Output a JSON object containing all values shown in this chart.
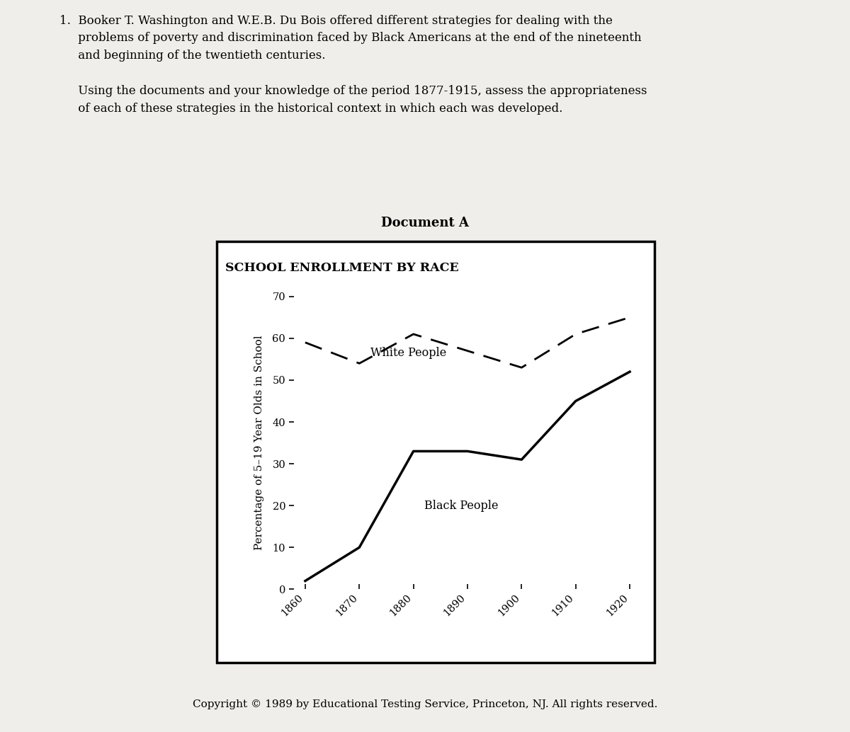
{
  "title_above": "Document A",
  "chart_title": "SCHOOL ENROLLMENT BY RACE",
  "ylabel": "Percentage of 5–19 Year Olds in School",
  "years": [
    1860,
    1870,
    1880,
    1890,
    1900,
    1910,
    1920
  ],
  "white_values": [
    59,
    54,
    61,
    57,
    53,
    61,
    65
  ],
  "black_values": [
    2,
    10,
    33,
    33,
    31,
    45,
    52
  ],
  "ylim": [
    0,
    70
  ],
  "yticks": [
    0,
    10,
    20,
    30,
    40,
    50,
    60,
    70
  ],
  "white_label": "White People",
  "black_label": "Black People",
  "copyright_text": "Copyright © 1989 by Educational Testing Service, Princeton, NJ. All rights reserved.",
  "bg_color": "#f0eeea",
  "chart_bg": "#ffffff",
  "text_color": "#000000",
  "line_color": "#000000",
  "question_text": "1.  Booker T. Washington and W.E.B. Du Bois offered different strategies for dealing with the\n     problems of poverty and discrimination faced by Black Americans at the end of the nineteenth\n     and beginning of the twentieth centuries.\n\n     Using the documents and your knowledge of the period 1877-1915, assess the appropriateness\n     of each of these strategies in the historical context in which each was developed."
}
